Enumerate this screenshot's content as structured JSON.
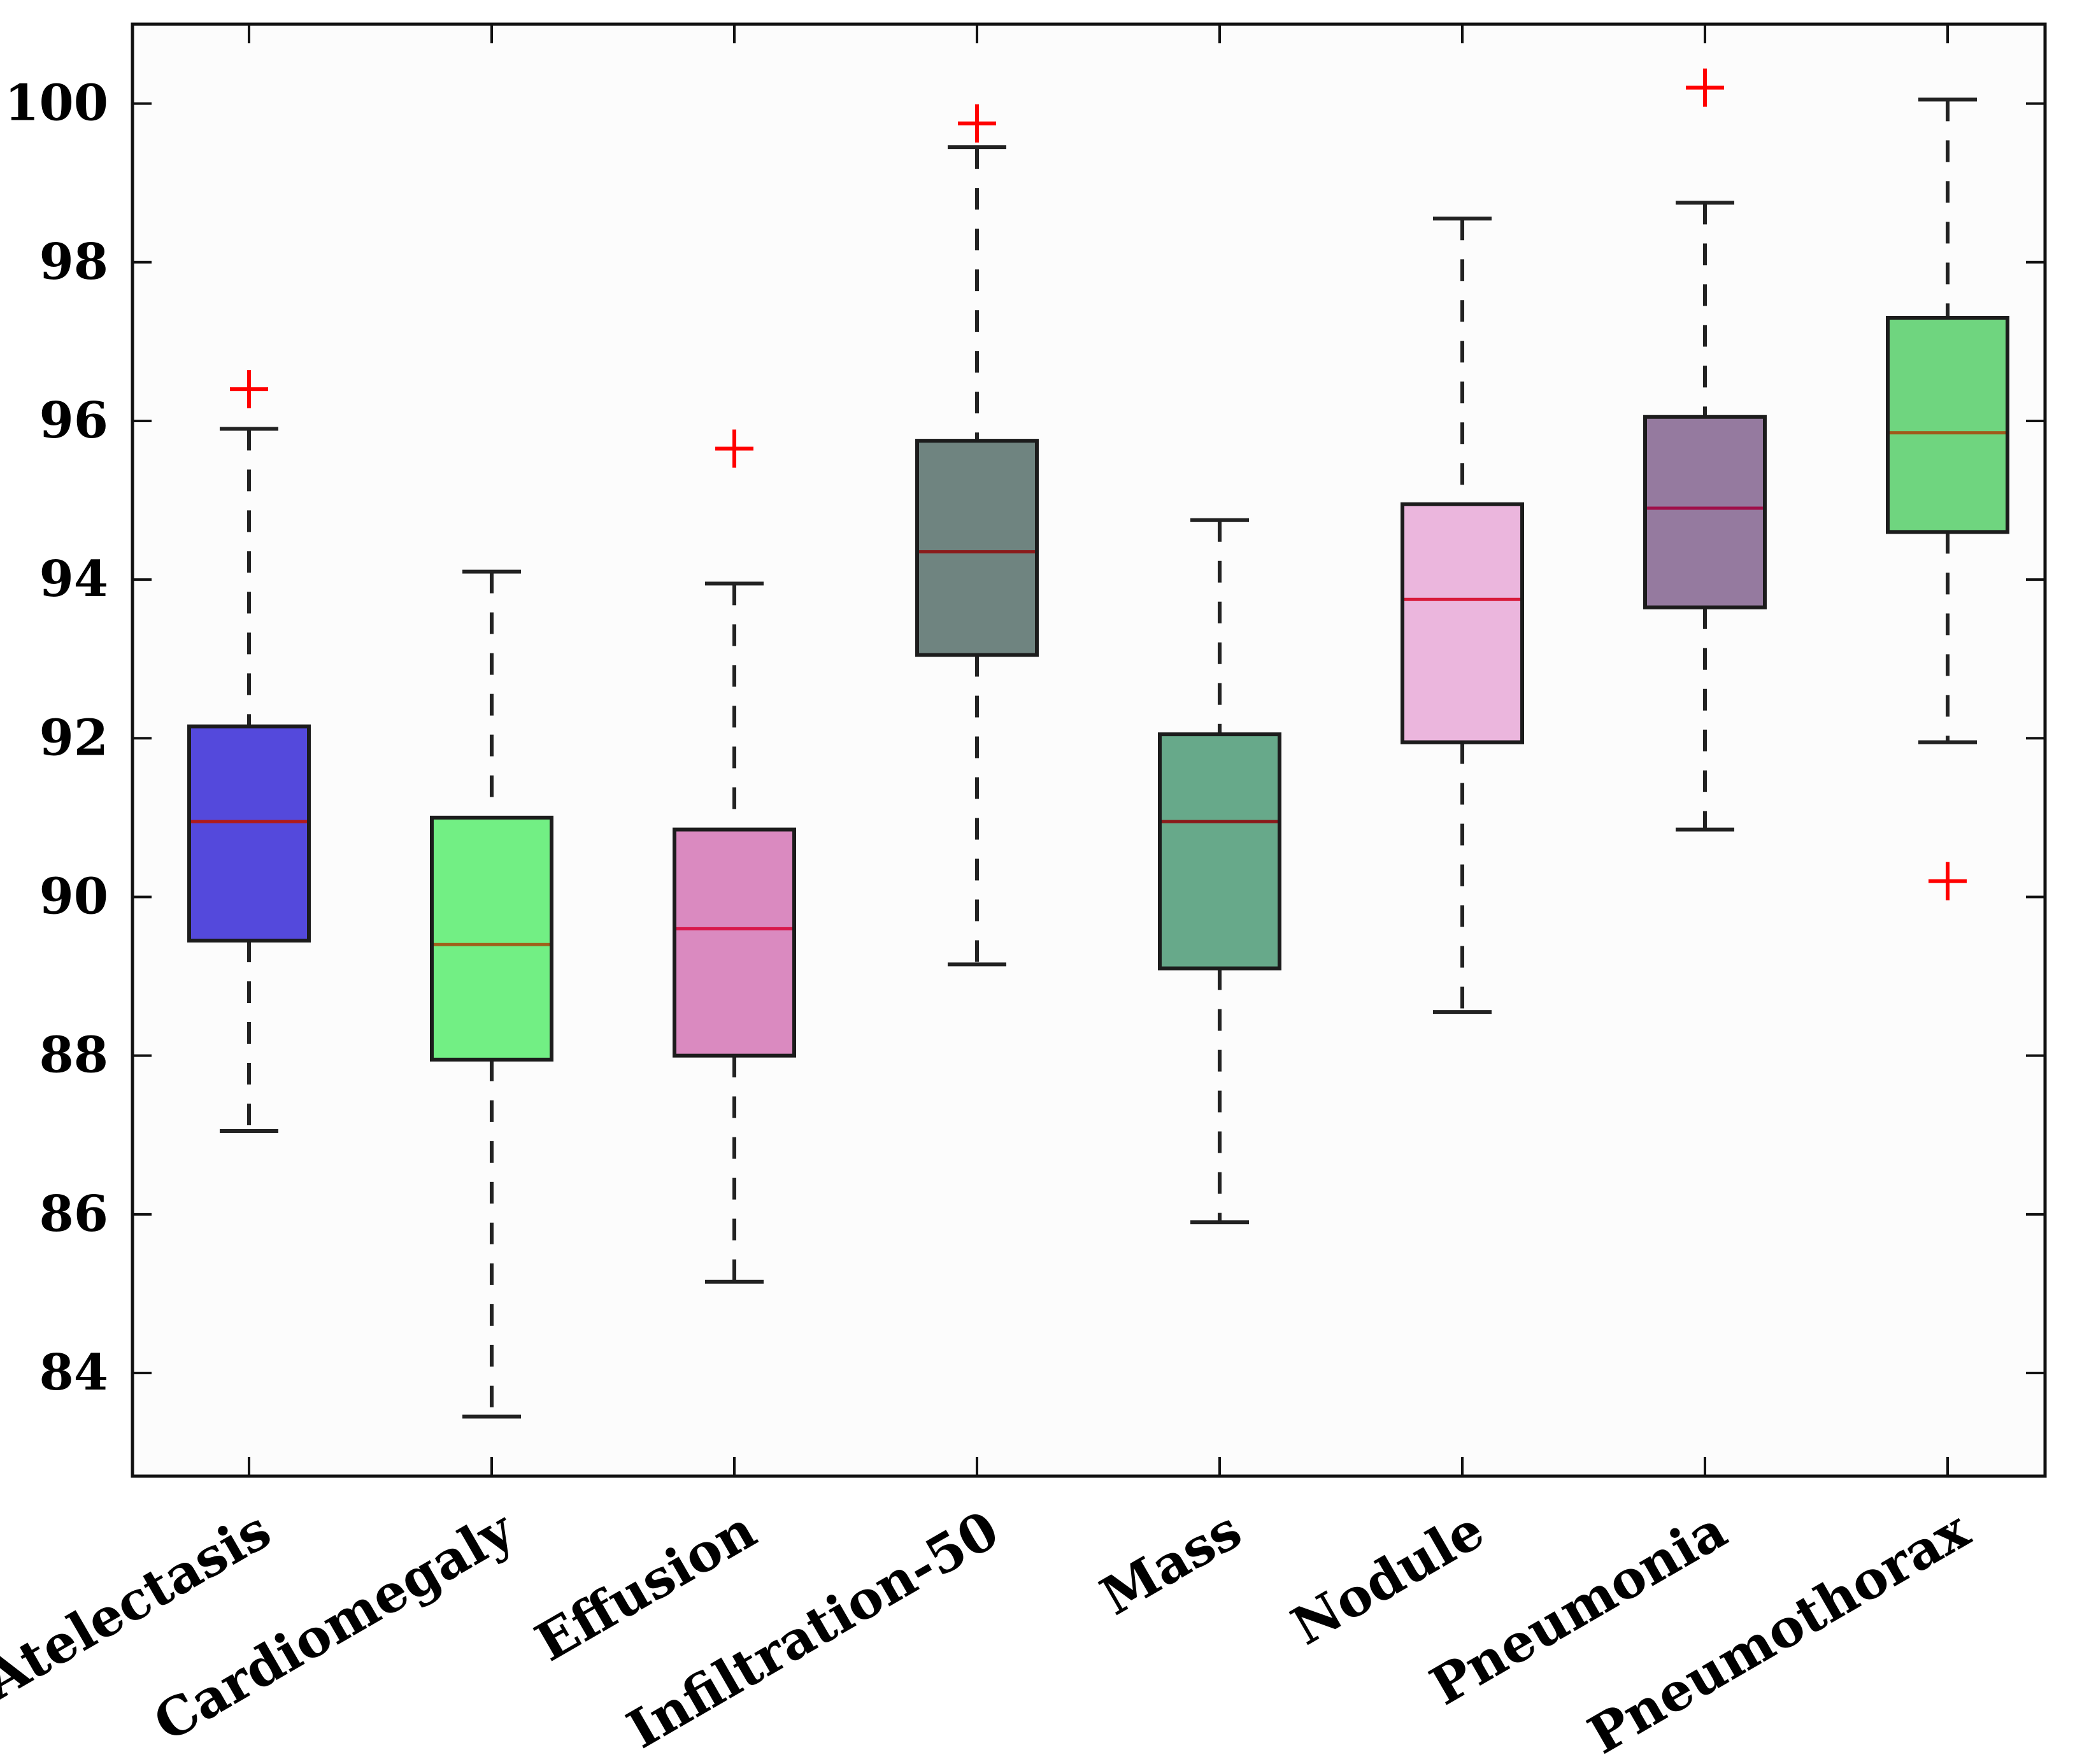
{
  "chart_data": {
    "type": "box",
    "title": "",
    "xlabel": "",
    "ylabel": "",
    "ylim": [
      82.7,
      101.0
    ],
    "yticks": [
      84,
      86,
      88,
      90,
      92,
      94,
      96,
      98,
      100
    ],
    "ytick_labels": [
      "84",
      "86",
      "88",
      "90",
      "92",
      "94",
      "96",
      "98",
      "100"
    ],
    "grid": false,
    "categories": [
      "Atelectasis",
      "Cardiomegaly",
      "Effusion",
      "Infiltration-50",
      "Mass",
      "Nodule",
      "Pneumonia",
      "Pneumothorax"
    ],
    "boxes": [
      {
        "category": "Atelectasis",
        "whisker_low": 87.05,
        "q1": 89.45,
        "median": 90.95,
        "q3": 92.15,
        "whisker_high": 95.9,
        "outliers": [
          96.4
        ],
        "fill": "#5449dc",
        "median_color": "#b01a1a"
      },
      {
        "category": "Cardiomegaly",
        "whisker_low": 83.45,
        "q1": 87.95,
        "median": 89.4,
        "q3": 91.0,
        "whisker_high": 94.1,
        "outliers": [],
        "fill": "#72ef84",
        "median_color": "#a0601a"
      },
      {
        "category": "Effusion",
        "whisker_low": 85.15,
        "q1": 88.0,
        "median": 89.6,
        "q3": 90.85,
        "whisker_high": 93.95,
        "outliers": [
          95.65
        ],
        "fill": "#da8ac0",
        "median_color": "#d8184a"
      },
      {
        "category": "Infiltration-50",
        "whisker_low": 89.15,
        "q1": 93.05,
        "median": 94.35,
        "q3": 95.75,
        "whisker_high": 99.45,
        "outliers": [
          99.75
        ],
        "fill": "#6f8480",
        "median_color": "#8a1a1a"
      },
      {
        "category": "Mass",
        "whisker_low": 85.9,
        "q1": 89.1,
        "median": 90.95,
        "q3": 92.05,
        "whisker_high": 94.75,
        "outliers": [],
        "fill": "#67a98a",
        "median_color": "#8a1a1a"
      },
      {
        "category": "Nodule",
        "whisker_low": 88.55,
        "q1": 91.95,
        "median": 93.75,
        "q3": 94.95,
        "whisker_high": 98.55,
        "outliers": [],
        "fill": "#ebb6dd",
        "median_color": "#d81a3a"
      },
      {
        "category": "Pneumonia",
        "whisker_low": 90.85,
        "q1": 93.65,
        "median": 94.9,
        "q3": 96.05,
        "whisker_high": 98.75,
        "outliers": [
          100.2
        ],
        "fill": "#957a9f",
        "median_color": "#a0104a"
      },
      {
        "category": "Pneumothorax",
        "whisker_low": 91.95,
        "q1": 94.6,
        "median": 95.85,
        "q3": 97.3,
        "whisker_high": 100.05,
        "outliers": [
          90.2
        ],
        "fill": "#6fd57f",
        "median_color": "#a05a1a"
      }
    ],
    "outlier_color": "#ff0000"
  }
}
